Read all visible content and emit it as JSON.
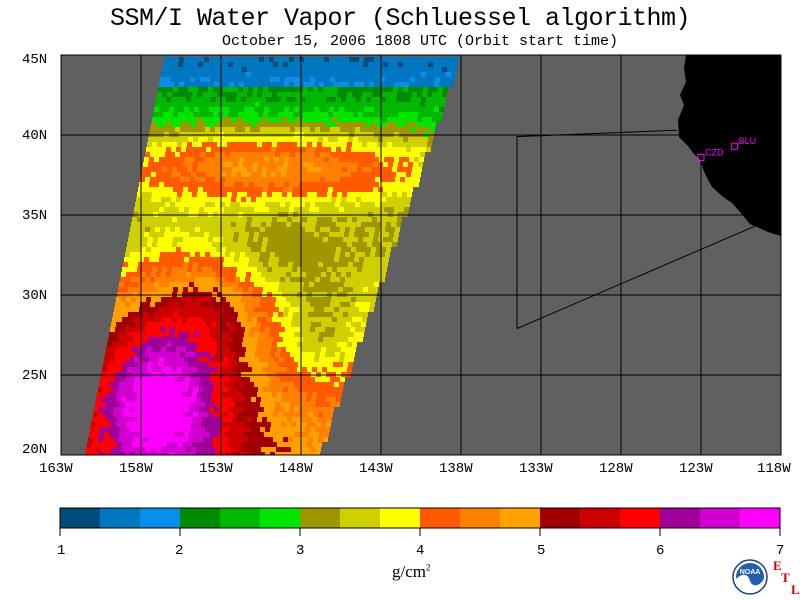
{
  "header": {
    "title": "SSM/I Water Vapor (Schluessel algorithm)",
    "subtitle": "October 15, 2006  1808 UTC  (Orbit start time)"
  },
  "map": {
    "lon_range": [
      -163,
      -118
    ],
    "lat_range": [
      20,
      45
    ],
    "lon_ticks": [
      "163W",
      "158W",
      "153W",
      "148W",
      "143W",
      "138W",
      "133W",
      "128W",
      "123W",
      "118W"
    ],
    "lat_ticks": [
      "45N",
      "40N",
      "35N",
      "30N",
      "25N",
      "20N"
    ],
    "stations": [
      {
        "label": "CZD",
        "lon": -123.0,
        "lat": 38.6
      },
      {
        "label": "BLU",
        "lon": -120.9,
        "lat": 39.3
      }
    ],
    "land_color": "#000000",
    "nodata_color": "#606060",
    "station_color": "#ff00ff"
  },
  "colorbar": {
    "ticks": [
      "1",
      "2",
      "3",
      "4",
      "5",
      "6",
      "7"
    ],
    "unit": "g/cm",
    "unit_exp": "2",
    "colors": [
      "#004d7a",
      "#0077c0",
      "#0a8eea",
      "#008a00",
      "#00b800",
      "#00e600",
      "#a09600",
      "#d0cf00",
      "#ffff00",
      "#ff5a00",
      "#ff8000",
      "#ffa200",
      "#a00000",
      "#cc0000",
      "#ff0000",
      "#a0009a",
      "#d000ce",
      "#ff00ff"
    ]
  },
  "logo": {
    "text": "NOAA",
    "etl": [
      "E",
      "T",
      "L"
    ]
  }
}
